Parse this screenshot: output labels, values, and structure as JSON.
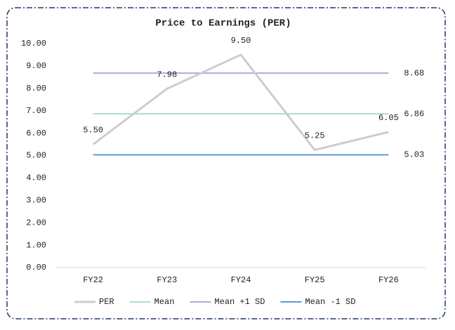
{
  "chart_data": {
    "type": "line",
    "title": "Price to Earnings (PER)",
    "categories": [
      "FY22",
      "FY23",
      "FY24",
      "FY25",
      "FY26"
    ],
    "series": [
      {
        "name": "PER",
        "color": "#d3caca",
        "values": [
          5.5,
          7.98,
          9.5,
          5.25,
          6.05
        ],
        "value_labels": [
          "5.50",
          "7.98",
          "9.50",
          "5.25",
          "6.05"
        ]
      },
      {
        "name": "Mean",
        "color": "#a9ddd0",
        "values": [
          6.86,
          6.86,
          6.86,
          6.86,
          6.86
        ],
        "value_labels": [
          null,
          null,
          null,
          null,
          "6.86"
        ]
      },
      {
        "name": "Mean +1 SD",
        "color": "#b2a9d9",
        "values": [
          8.68,
          8.68,
          8.68,
          8.68,
          8.68
        ],
        "value_labels": [
          null,
          null,
          null,
          null,
          "8.68"
        ]
      },
      {
        "name": "Mean -1 SD",
        "color": "#5b9bd5",
        "values": [
          5.03,
          5.03,
          5.03,
          5.03,
          5.03
        ],
        "value_labels": [
          null,
          null,
          null,
          null,
          "5.03"
        ]
      }
    ],
    "ylim": [
      0,
      10
    ],
    "yticks": [
      {
        "value": 0,
        "label": "0.00"
      },
      {
        "value": 1,
        "label": "1.00"
      },
      {
        "value": 2,
        "label": "2.00"
      },
      {
        "value": 3,
        "label": "3.00"
      },
      {
        "value": 4,
        "label": "4.00"
      },
      {
        "value": 5,
        "label": "5.00"
      },
      {
        "value": 6,
        "label": "6.00"
      },
      {
        "value": 7,
        "label": "7.00"
      },
      {
        "value": 8,
        "label": "8.00"
      },
      {
        "value": 9,
        "label": "9.00"
      },
      {
        "value": 10,
        "label": "10.00"
      }
    ],
    "grid": false,
    "legend": "bottom"
  }
}
